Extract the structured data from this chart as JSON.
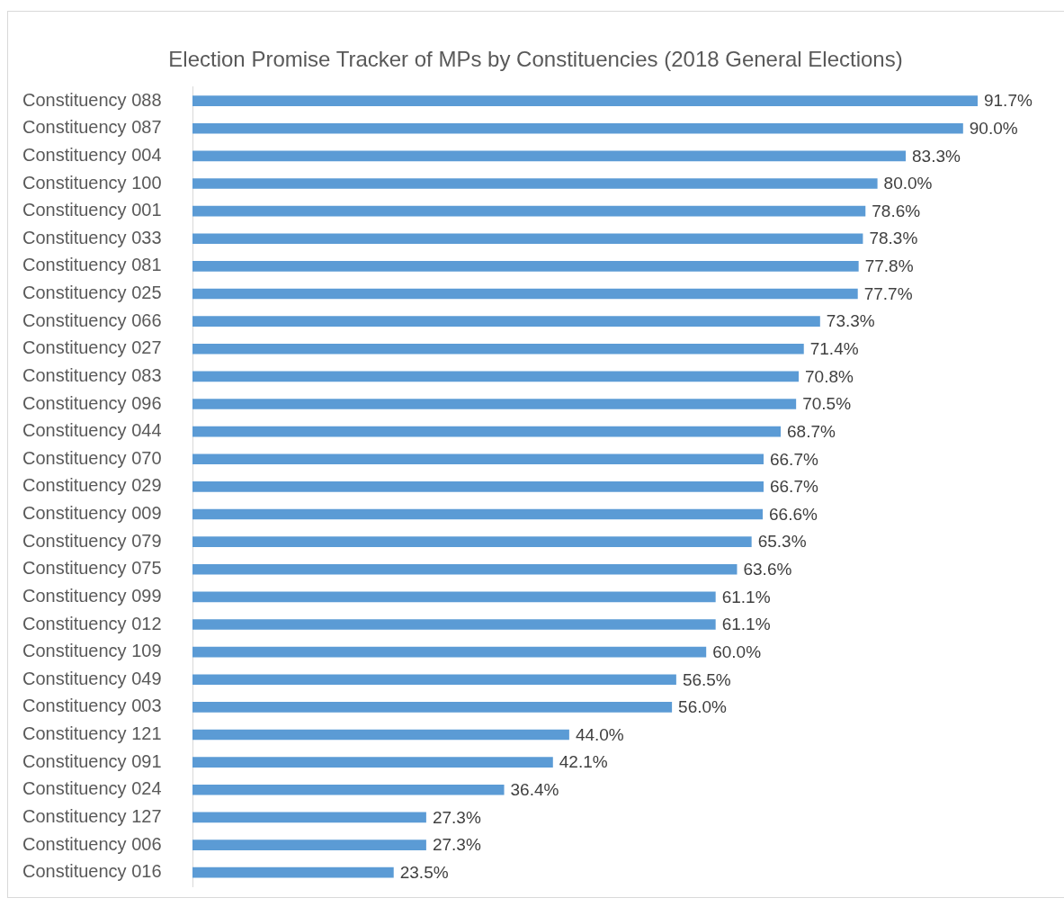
{
  "chart_data": {
    "type": "bar",
    "orientation": "horizontal",
    "title": "Election Promise Tracker of MPs by Constituencies (2018 General Elections)",
    "categories": [
      "Constituency 088",
      "Constituency 087",
      "Constituency 004",
      "Constituency 100",
      "Constituency 001",
      "Constituency 033",
      "Constituency 081",
      "Constituency 025",
      "Constituency 066",
      "Constituency 027",
      "Constituency 083",
      "Constituency 096",
      "Constituency 044",
      "Constituency 070",
      "Constituency 029",
      "Constituency 009",
      "Constituency 079",
      "Constituency 075",
      "Constituency 099",
      "Constituency 012",
      "Constituency 109",
      "Constituency 049",
      "Constituency 003",
      "Constituency 121",
      "Constituency 091",
      "Constituency 024",
      "Constituency 127",
      "Constituency 006",
      "Constituency 016"
    ],
    "values": [
      91.7,
      90.0,
      83.3,
      80.0,
      78.6,
      78.3,
      77.8,
      77.7,
      73.3,
      71.4,
      70.8,
      70.5,
      68.7,
      66.7,
      66.7,
      66.6,
      65.3,
      63.6,
      61.1,
      61.1,
      60.0,
      56.5,
      56.0,
      44.0,
      42.1,
      36.4,
      27.3,
      27.3,
      23.5
    ],
    "value_labels": [
      "91.7%",
      "90.0%",
      "83.3%",
      "80.0%",
      "78.6%",
      "78.3%",
      "77.8%",
      "77.7%",
      "73.3%",
      "71.4%",
      "70.8%",
      "70.5%",
      "68.7%",
      "66.7%",
      "66.7%",
      "66.6%",
      "65.3%",
      "63.6%",
      "61.1%",
      "61.1%",
      "60.0%",
      "56.5%",
      "56.0%",
      "44.0%",
      "42.1%",
      "36.4%",
      "27.3%",
      "27.3%",
      "23.5%"
    ],
    "color": "#5b9bd5",
    "tick_labels": "y"
  }
}
